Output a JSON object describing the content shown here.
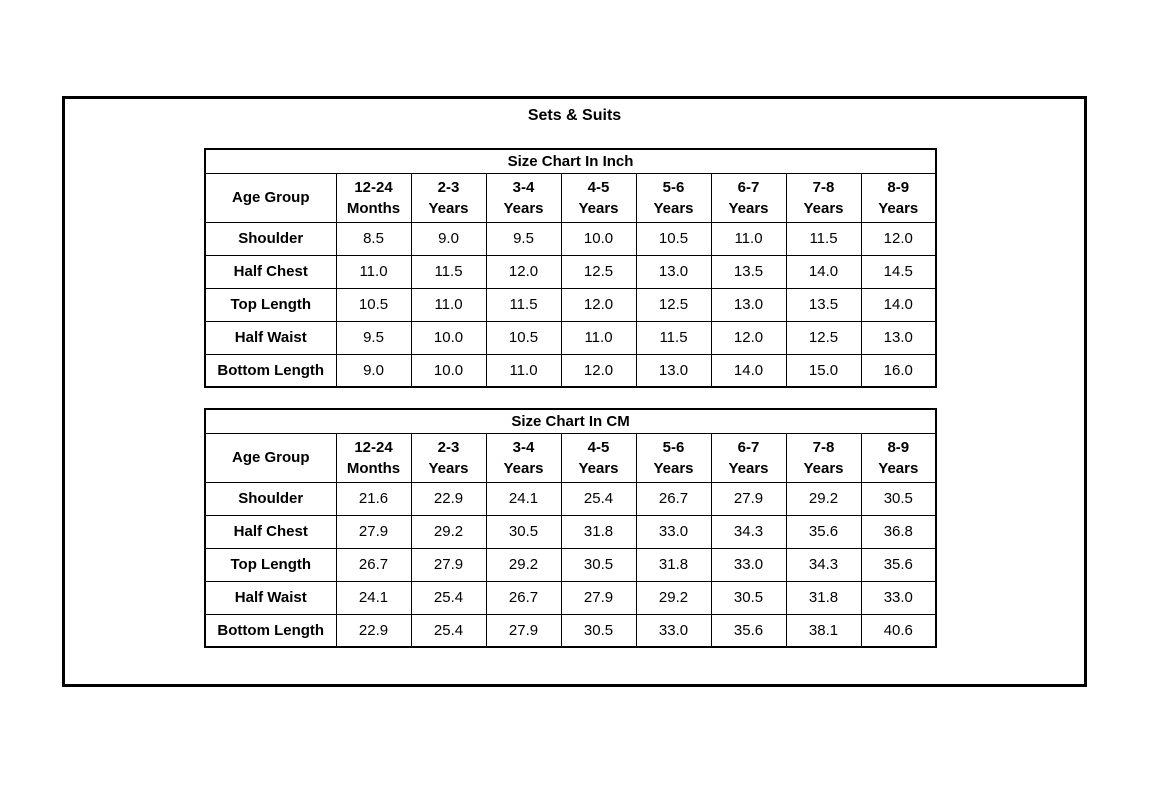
{
  "page_title": "Sets & Suits",
  "colors": {
    "border": "#000000",
    "text": "#000000",
    "background": "#ffffff"
  },
  "tables": [
    {
      "title": "Size Chart In Inch",
      "corner_label": "Age Group",
      "columns": [
        {
          "top": "12-24",
          "bottom": "Months"
        },
        {
          "top": "2-3",
          "bottom": "Years"
        },
        {
          "top": "3-4",
          "bottom": "Years"
        },
        {
          "top": "4-5",
          "bottom": "Years"
        },
        {
          "top": "5-6",
          "bottom": "Years"
        },
        {
          "top": "6-7",
          "bottom": "Years"
        },
        {
          "top": "7-8",
          "bottom": "Years"
        },
        {
          "top": "8-9",
          "bottom": "Years"
        }
      ],
      "rows": [
        {
          "label": "Shoulder",
          "values": [
            "8.5",
            "9.0",
            "9.5",
            "10.0",
            "10.5",
            "11.0",
            "11.5",
            "12.0"
          ]
        },
        {
          "label": "Half Chest",
          "values": [
            "11.0",
            "11.5",
            "12.0",
            "12.5",
            "13.0",
            "13.5",
            "14.0",
            "14.5"
          ]
        },
        {
          "label": "Top Length",
          "values": [
            "10.5",
            "11.0",
            "11.5",
            "12.0",
            "12.5",
            "13.0",
            "13.5",
            "14.0"
          ]
        },
        {
          "label": "Half Waist",
          "values": [
            "9.5",
            "10.0",
            "10.5",
            "11.0",
            "11.5",
            "12.0",
            "12.5",
            "13.0"
          ]
        },
        {
          "label": "Bottom Length",
          "values": [
            "9.0",
            "10.0",
            "11.0",
            "12.0",
            "13.0",
            "14.0",
            "15.0",
            "16.0"
          ]
        }
      ]
    },
    {
      "title": "Size Chart In CM",
      "corner_label": "Age Group",
      "columns": [
        {
          "top": "12-24",
          "bottom": "Months"
        },
        {
          "top": "2-3",
          "bottom": "Years"
        },
        {
          "top": "3-4",
          "bottom": "Years"
        },
        {
          "top": "4-5",
          "bottom": "Years"
        },
        {
          "top": "5-6",
          "bottom": "Years"
        },
        {
          "top": "6-7",
          "bottom": "Years"
        },
        {
          "top": "7-8",
          "bottom": "Years"
        },
        {
          "top": "8-9",
          "bottom": "Years"
        }
      ],
      "rows": [
        {
          "label": "Shoulder",
          "values": [
            "21.6",
            "22.9",
            "24.1",
            "25.4",
            "26.7",
            "27.9",
            "29.2",
            "30.5"
          ]
        },
        {
          "label": "Half Chest",
          "values": [
            "27.9",
            "29.2",
            "30.5",
            "31.8",
            "33.0",
            "34.3",
            "35.6",
            "36.8"
          ]
        },
        {
          "label": "Top Length",
          "values": [
            "26.7",
            "27.9",
            "29.2",
            "30.5",
            "31.8",
            "33.0",
            "34.3",
            "35.6"
          ]
        },
        {
          "label": "Half Waist",
          "values": [
            "24.1",
            "25.4",
            "26.7",
            "27.9",
            "29.2",
            "30.5",
            "31.8",
            "33.0"
          ]
        },
        {
          "label": "Bottom Length",
          "values": [
            "22.9",
            "25.4",
            "27.9",
            "30.5",
            "33.0",
            "35.6",
            "38.1",
            "40.6"
          ]
        }
      ]
    }
  ]
}
